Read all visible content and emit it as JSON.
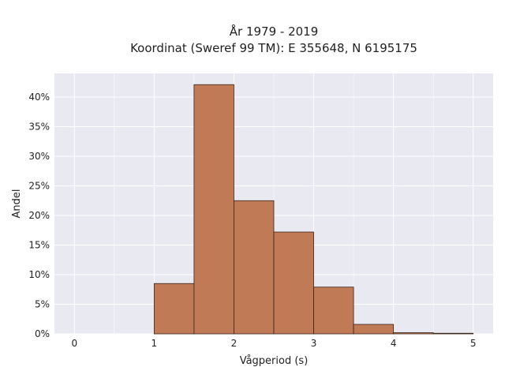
{
  "chart_data": {
    "type": "bar",
    "title_lines": [
      "År 1979 - 2019",
      "Koordinat (Sweref 99 TM): E 355648, N 6195175"
    ],
    "xlabel": "Vågperiod (s)",
    "ylabel": "Andel",
    "bins": [
      {
        "x0": 1.0,
        "x1": 1.5,
        "value": 8.5
      },
      {
        "x0": 1.5,
        "x1": 2.0,
        "value": 42.1
      },
      {
        "x0": 2.0,
        "x1": 2.5,
        "value": 22.5
      },
      {
        "x0": 2.5,
        "x1": 3.0,
        "value": 17.2
      },
      {
        "x0": 3.0,
        "x1": 3.5,
        "value": 7.9
      },
      {
        "x0": 3.5,
        "x1": 4.0,
        "value": 1.6
      },
      {
        "x0": 4.0,
        "x1": 4.5,
        "value": 0.2
      },
      {
        "x0": 4.5,
        "x1": 5.0,
        "value": 0.1
      }
    ],
    "xlim": [
      -0.25,
      5.25
    ],
    "ylim": [
      0,
      44
    ],
    "xticks": [
      0,
      1,
      2,
      3,
      4,
      5
    ],
    "yticks": [
      0,
      5,
      10,
      15,
      20,
      25,
      30,
      35,
      40
    ],
    "ytick_suffix": "%",
    "grid": true,
    "colors": {
      "bar_fill": "#c07a56",
      "bar_edge": "#3a2418",
      "plot_background": "#e9e9f1",
      "grid": "#ffffff"
    }
  }
}
